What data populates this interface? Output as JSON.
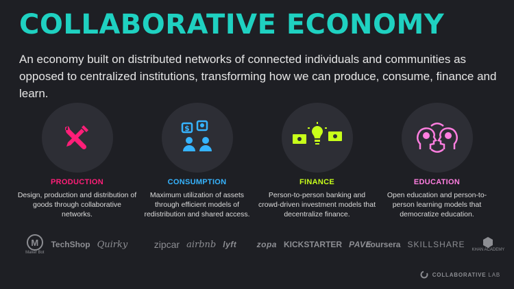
{
  "title": "COLLABORATIVE ECONOMY",
  "subtitle": "An economy built on distributed networks of connected individuals and communities as opposed to centralized institutions, transforming how we can produce, consume, finance and learn.",
  "colors": {
    "title": "#1fd1c1",
    "production": "#ff1e78",
    "consumption": "#36b4ff",
    "finance": "#c8ff1a",
    "education": "#ff7ee0"
  },
  "columns": [
    {
      "icon": "tools-icon",
      "title": "PRODUCTION",
      "description": "Design, production and distribution of goods through collaborative networks.",
      "logos": [
        "TechShop",
        "Quirky"
      ],
      "logo_small_text": "Maker Bot"
    },
    {
      "icon": "exchange-people-icon",
      "title": "CONSUMPTION",
      "description": "Maximum utilization of assets through efficient models of redistribution and shared access.",
      "logos": [
        "zipcar",
        "airbnb",
        "lyft"
      ]
    },
    {
      "icon": "money-exchange-icon",
      "title": "FINANCE",
      "description": "Person-to-person banking and crowd-driven investment models that decentralize finance.",
      "logos": [
        "zopa",
        "KICKSTARTER",
        "PAVE"
      ]
    },
    {
      "icon": "minds-exchange-icon",
      "title": "EDUCATION",
      "description": "Open education and person-to-person learning models that democratize education.",
      "logos": [
        "coursera",
        "SKILLSHARE"
      ],
      "logo_small_text": "KHAN ACADEMY"
    }
  ],
  "brand": {
    "name": "COLLABORATIVE",
    "suffix": "LAB"
  }
}
